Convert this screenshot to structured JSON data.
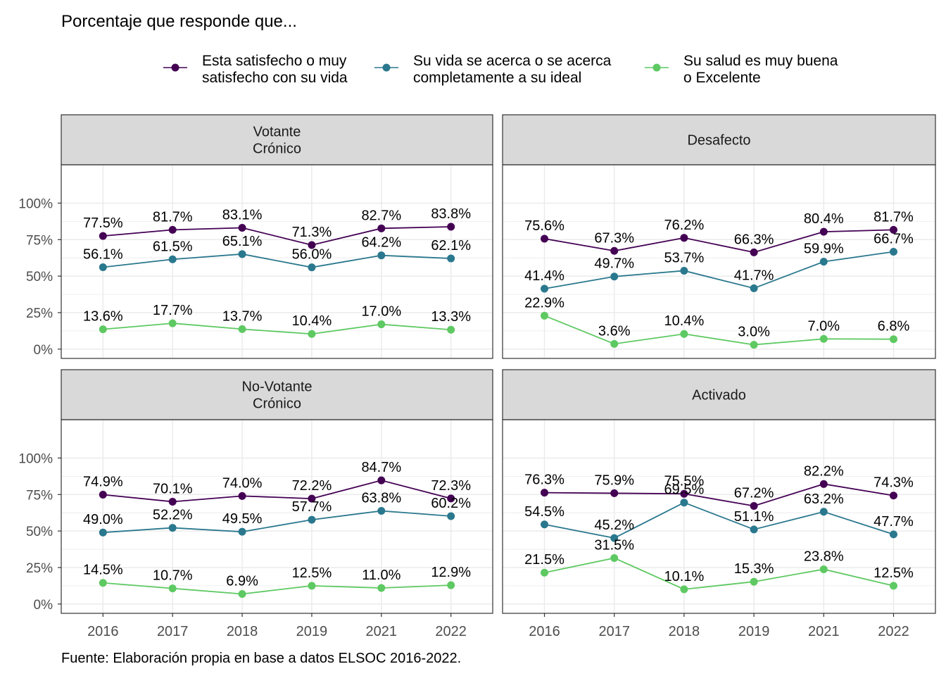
{
  "title": "Porcentaje que responde que...",
  "caption": "Fuente: Elaboración propia en base a datos ELSOC 2016-2022.",
  "colors": {
    "series": [
      "#440154",
      "#2A788E",
      "#5EC962"
    ],
    "strip_bg": "#D9D9D9",
    "grid": "#EBEBEB",
    "panel_border": "#333333"
  },
  "chart_data": {
    "type": "line",
    "x": [
      "2016",
      "2017",
      "2018",
      "2019",
      "2021",
      "2022"
    ],
    "ylim": [
      0,
      100
    ],
    "yticks": [
      "0%",
      "25%",
      "50%",
      "75%",
      "100%"
    ],
    "ytick_values": [
      0,
      25,
      50,
      75,
      100
    ],
    "grid": true,
    "legend_position": "top",
    "series_names": [
      [
        "Esta satisfecho o muy",
        "satisfecho con su vida"
      ],
      [
        "Su vida se acerca o se acerca",
        "completamente a su ideal"
      ],
      [
        "Su salud es muy buena",
        "o Excelente"
      ]
    ],
    "panels": [
      {
        "title": [
          "Votante",
          "Crónico"
        ],
        "series": [
          {
            "values": [
              77.5,
              81.7,
              83.1,
              71.3,
              82.7,
              83.8
            ],
            "labels": [
              "77.5%",
              "81.7%",
              "83.1%",
              "71.3%",
              "82.7%",
              "83.8%"
            ]
          },
          {
            "values": [
              56.1,
              61.5,
              65.1,
              56.0,
              64.2,
              62.1
            ],
            "labels": [
              "56.1%",
              "61.5%",
              "65.1%",
              "56.0%",
              "64.2%",
              "62.1%"
            ]
          },
          {
            "values": [
              13.6,
              17.7,
              13.7,
              10.4,
              17.0,
              13.3
            ],
            "labels": [
              "13.6%",
              "17.7%",
              "13.7%",
              "10.4%",
              "17.0%",
              "13.3%"
            ]
          }
        ]
      },
      {
        "title": [
          "Desafecto"
        ],
        "series": [
          {
            "values": [
              75.6,
              67.3,
              76.2,
              66.3,
              80.4,
              81.7
            ],
            "labels": [
              "75.6%",
              "67.3%",
              "76.2%",
              "66.3%",
              "80.4%",
              "81.7%"
            ]
          },
          {
            "values": [
              41.4,
              49.7,
              53.7,
              41.7,
              59.9,
              66.7
            ],
            "labels": [
              "41.4%",
              "49.7%",
              "53.7%",
              "41.7%",
              "59.9%",
              "66.7%"
            ]
          },
          {
            "values": [
              22.9,
              3.6,
              10.4,
              3.0,
              7.0,
              6.8
            ],
            "labels": [
              "22.9%",
              "3.6%",
              "10.4%",
              "3.0%",
              "7.0%",
              "6.8%"
            ]
          }
        ]
      },
      {
        "title": [
          "No-Votante",
          "Crónico"
        ],
        "series": [
          {
            "values": [
              74.9,
              70.1,
              74.0,
              72.2,
              84.7,
              72.3
            ],
            "labels": [
              "74.9%",
              "70.1%",
              "74.0%",
              "72.2%",
              "84.7%",
              "72.3%"
            ]
          },
          {
            "values": [
              49.0,
              52.2,
              49.5,
              57.7,
              63.8,
              60.2
            ],
            "labels": [
              "49.0%",
              "52.2%",
              "49.5%",
              "57.7%",
              "63.8%",
              "60.2%"
            ]
          },
          {
            "values": [
              14.5,
              10.7,
              6.9,
              12.5,
              11.0,
              12.9
            ],
            "labels": [
              "14.5%",
              "10.7%",
              "6.9%",
              "12.5%",
              "11.0%",
              "12.9%"
            ]
          }
        ]
      },
      {
        "title": [
          "Activado"
        ],
        "series": [
          {
            "values": [
              76.3,
              75.9,
              75.5,
              67.2,
              82.2,
              74.3
            ],
            "labels": [
              "76.3%",
              "75.9%",
              "75.5%",
              "67.2%",
              "82.2%",
              "74.3%"
            ]
          },
          {
            "values": [
              54.5,
              45.2,
              69.5,
              51.1,
              63.2,
              47.7
            ],
            "labels": [
              "54.5%",
              "45.2%",
              "69.5%",
              "51.1%",
              "63.2%",
              "47.7%"
            ]
          },
          {
            "values": [
              21.5,
              31.5,
              10.1,
              15.3,
              23.8,
              12.5
            ],
            "labels": [
              "21.5%",
              "31.5%",
              "10.1%",
              "15.3%",
              "23.8%",
              "12.5%"
            ]
          }
        ]
      }
    ]
  }
}
